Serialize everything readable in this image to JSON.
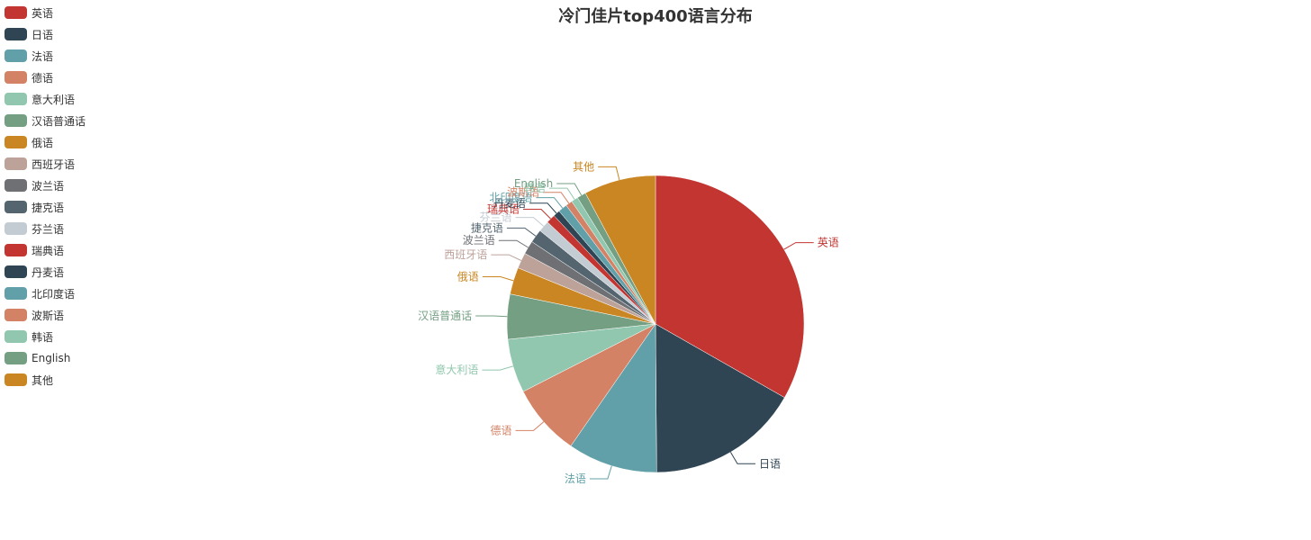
{
  "chart_data": {
    "type": "pie",
    "title": "冷门佳片top400语言分布",
    "legend_position": "left-top",
    "slices": [
      {
        "name": "英语",
        "value": 136,
        "color": "#c23531"
      },
      {
        "name": "日语",
        "value": 68,
        "color": "#2f4554"
      },
      {
        "name": "法语",
        "value": 40,
        "color": "#61a0a8"
      },
      {
        "name": "德语",
        "value": 32,
        "color": "#d48265"
      },
      {
        "name": "意大利语",
        "value": 24,
        "color": "#91c7ae"
      },
      {
        "name": "汉语普通话",
        "value": 20,
        "color": "#749f83"
      },
      {
        "name": "俄语",
        "value": 12,
        "color": "#ca8622"
      },
      {
        "name": "西班牙语",
        "value": 7,
        "color": "#bda29a"
      },
      {
        "name": "波兰语",
        "value": 6,
        "color": "#6e7074"
      },
      {
        "name": "捷克语",
        "value": 6,
        "color": "#546570"
      },
      {
        "name": "芬兰语",
        "value": 5,
        "color": "#c4ccd3"
      },
      {
        "name": "瑞典语",
        "value": 4,
        "color": "#c23531"
      },
      {
        "name": "丹麦语",
        "value": 3,
        "color": "#2f4554"
      },
      {
        "name": "北印度语",
        "value": 4,
        "color": "#61a0a8"
      },
      {
        "name": "波斯语",
        "value": 3,
        "color": "#d48265"
      },
      {
        "name": "韩语",
        "value": 3,
        "color": "#91c7ae"
      },
      {
        "name": "English",
        "value": 4,
        "color": "#749f83"
      },
      {
        "name": "其他",
        "value": 32,
        "color": "#ca8622"
      }
    ]
  }
}
